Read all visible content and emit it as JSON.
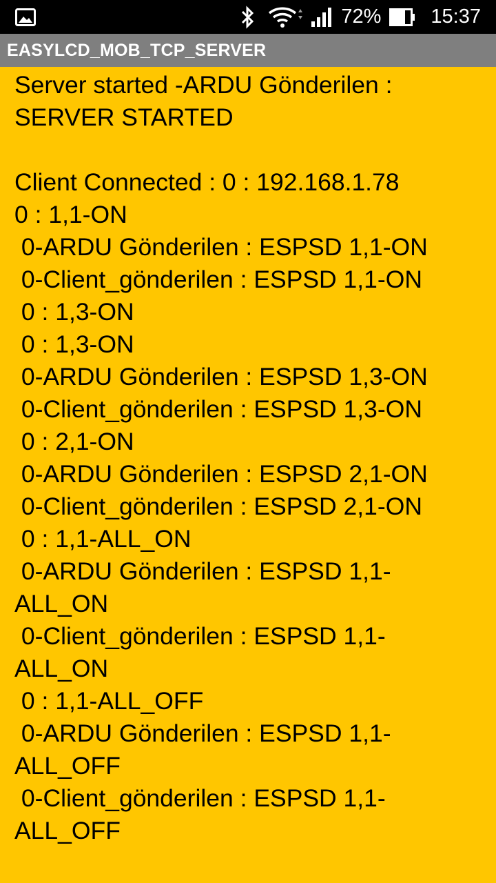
{
  "status_bar": {
    "left_icon": "image-gallery-icon",
    "icons": [
      "bluetooth-icon",
      "wifi-icon",
      "cellular-signal-icon",
      "battery-icon"
    ],
    "battery_percent": "72%",
    "time": "15:37"
  },
  "app_bar": {
    "title": "EASYLCD_MOB_TCP_SERVER"
  },
  "log": {
    "text": "Server started -ARDU Gönderilen : SERVER STARTED\n\nClient Connected : 0 : 192.168.1.78\n0 : 1,1-ON\n 0-ARDU Gönderilen : ESPSD 1,1-ON\n 0-Client_gönderilen : ESPSD 1,1-ON\n 0 : 1,3-ON\n 0 : 1,3-ON\n 0-ARDU Gönderilen : ESPSD 1,3-ON\n 0-Client_gönderilen : ESPSD 1,3-ON\n 0 : 2,1-ON\n 0-ARDU Gönderilen : ESPSD 2,1-ON\n 0-Client_gönderilen : ESPSD 2,1-ON\n 0 : 1,1-ALL_ON\n 0-ARDU Gönderilen : ESPSD 1,1-\nALL_ON\n 0-Client_gönderilen : ESPSD 1,1-\nALL_ON\n 0 : 1,1-ALL_OFF\n 0-ARDU Gönderilen : ESPSD 1,1-\nALL_OFF\n 0-Client_gönderilen : ESPSD 1,1-\nALL_OFF"
  },
  "colors": {
    "background": "#ffc600",
    "status_bar": "#000000",
    "app_bar": "#7f7f7f",
    "text": "#000000"
  }
}
